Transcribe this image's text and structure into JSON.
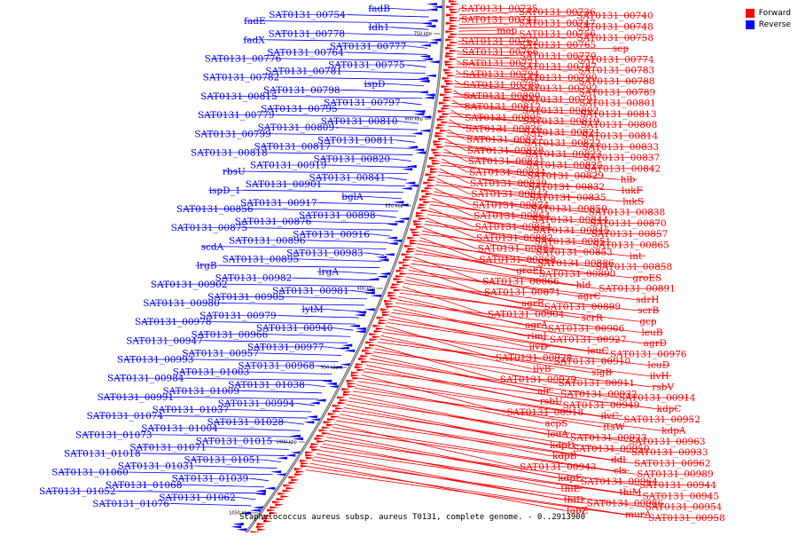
{
  "colors": {
    "forward": "#ff0000",
    "reverse": "#0000ff",
    "backbone": "#777777"
  },
  "legend": {
    "forward": "Forward",
    "reverse": "Reverse"
  },
  "caption": "Staphylococcus aureus subsp. aureus T0131, complete genome. - 0..2913900",
  "ticks": [
    "750 kbp",
    "800 kbp",
    "850 kbp",
    "900 kbp",
    "950 kbp",
    "1000 kbp",
    "1050 kbp"
  ],
  "forward_labels": [
    "SAT0131_00735",
    "SAT0131_00736",
    "SAT0131_00740",
    "SAT0131_00741",
    "SAT0131_00747",
    "SAT0131_00748",
    "map",
    "SAT0131_00756",
    "SAT0131_00758",
    "SAT0131_00762",
    "SAT0131_00765",
    "sep",
    "SAT0131_00766",
    "SAT0131_00770",
    "SAT0131_00774",
    "SAT0131_00771",
    "SAT0131_00787",
    "SAT0131_00783",
    "SAT0131_00794",
    "SAT0131_00790",
    "SAT0131_00788",
    "SAT0131_00785",
    "SAT0131_00792",
    "SAT0131_00789",
    "SAT0131_00800",
    "SAT0131_00791",
    "SAT0131_00801",
    "SAT0131_00812",
    "SAT0131_00802",
    "SAT0131_00813",
    "SAT0131_00805",
    "SAT0131_00819",
    "SAT0131_00808",
    "SAT0131_00826",
    "SAT0131_00821",
    "SAT0131_00814",
    "SAT0131_00827",
    "SAT0131_00822",
    "SAT0131_00833",
    "SAT0131_00828",
    "SAT0131_00823",
    "SAT0131_00837",
    "SAT0131_00831",
    "SAT0131_00825",
    "SAT0131_00842",
    "SAT0131_00834",
    "SAT0131_00829",
    "hlb",
    "SAT0131_00839",
    "SAT0131_00832",
    "lukF",
    "SAT0131_00843",
    "SAT0131_00835",
    "lukS",
    "SAT0131_00874",
    "SAT0131_00850",
    "SAT0131_00838",
    "SAT0131_00864",
    "SAT0131_00844",
    "SAT0131_00870",
    "SAT0131_00854",
    "SAT0131_00845",
    "SAT0131_00857",
    "SAT0131_00882",
    "SAT0131_00851",
    "SAT0131_00865",
    "SAT0131_00883",
    "SAT0131_00853",
    "int",
    "SAT0131_00868",
    "SAT0131_00886",
    "SAT0131_00858",
    "groEL",
    "SAT0131_00890",
    "groES",
    "SAT0131_00866",
    "hld",
    "SAT0131_00891",
    "SAT0131_00871",
    "agrC",
    "sdrH",
    "agrB",
    "SAT0131_00899",
    "scrB",
    "SAT0131_00904",
    "scrR",
    "gcp",
    "agrA",
    "SAT0131_00906",
    "leuB",
    "rimJ",
    "SAT0131_00927",
    "agrD",
    "ilvD",
    "leuC",
    "SAT0131_00976",
    "SAT0131_00928",
    "SAT0131_00910",
    "leuD",
    "ilvB",
    "sigB",
    "ilvH",
    "SAT0131_00929",
    "SAT0131_00911",
    "rsbV",
    "alr",
    "SAT0131_00932",
    "SAT0131_00914",
    "rsbU",
    "SAT0131_00949",
    "kdpC",
    "SAT0131_00918",
    "ilvC",
    "SAT0131_00952",
    "acpS",
    "ftsW",
    "kdpA",
    "leuA",
    "SAT0131_00923",
    "SAT0131_00963",
    "kdpD",
    "SAT0131_00950",
    "SAT0131_00933",
    "kdpB",
    "ddl",
    "SAT0131_00962",
    "SAT0131_00943",
    "cls",
    "SAT0131_00989",
    "kdpE",
    "SAT0131_00964",
    "SAT0131_00944",
    "thiE",
    "thiM",
    "SAT0131_00945",
    "thiD",
    "SAT0131_00986",
    "SAT0131_00954",
    "fabZ",
    "murA",
    "SAT0131_00958"
  ],
  "reverse_labels": [
    "fadB",
    "SAT0131_00754",
    "fadE",
    "ldh1",
    "SAT0131_00778",
    "fadX",
    "SAT0131_00777",
    "SAT0131_00764",
    "SAT0131_00776",
    "SAT0131_00775",
    "SAT0131_00781",
    "SAT0131_00782",
    "ispD",
    "SAT0131_00798",
    "SAT0131_00815",
    "SAT0131_00797",
    "SAT0131_00795",
    "SAT0131_00779",
    "SAT0131_00810",
    "SAT0131_00809",
    "SAT0131_00799",
    "SAT0131_00811",
    "SAT0131_00817",
    "SAT0131_00818",
    "SAT0131_00820",
    "SAT0131_00919",
    "rbsU",
    "SAT0131_00841",
    "SAT0131_00901",
    "ispD_1",
    "bglA",
    "SAT0131_00917",
    "SAT0131_00856",
    "SAT0131_00898",
    "SAT0131_00876",
    "SAT0131_00875",
    "SAT0131_00916",
    "SAT0131_00896",
    "scdA",
    "SAT0131_00983",
    "SAT0131_00895",
    "lrgB",
    "lrgA",
    "SAT0131_00982",
    "SAT0131_00902",
    "SAT0131_00981",
    "SAT0131_00905",
    "SAT0131_00980",
    "lytM",
    "SAT0131_00979",
    "SAT0131_00978",
    "SAT0131_00940",
    "SAT0131_00966",
    "SAT0131_00947",
    "SAT0131_00977",
    "SAT0131_00957",
    "SAT0131_00993",
    "SAT0131_00968",
    "SAT0131_01003",
    "SAT0131_00984",
    "SAT0131_01038",
    "SAT0131_01009",
    "SAT0131_00991",
    "SAT0131_00994",
    "SAT0131_01037",
    "SAT0131_01074",
    "SAT0131_01028",
    "SAT0131_01004",
    "SAT0131_01073",
    "SAT0131_01015",
    "SAT0131_01071",
    "SAT0131_01018",
    "SAT0131_01051",
    "SAT0131_01031",
    "SAT0131_01060",
    "SAT0131_01039",
    "SAT0131_01068",
    "SAT0131_01052",
    "SAT0131_01062",
    "SAT0131_01076"
  ]
}
